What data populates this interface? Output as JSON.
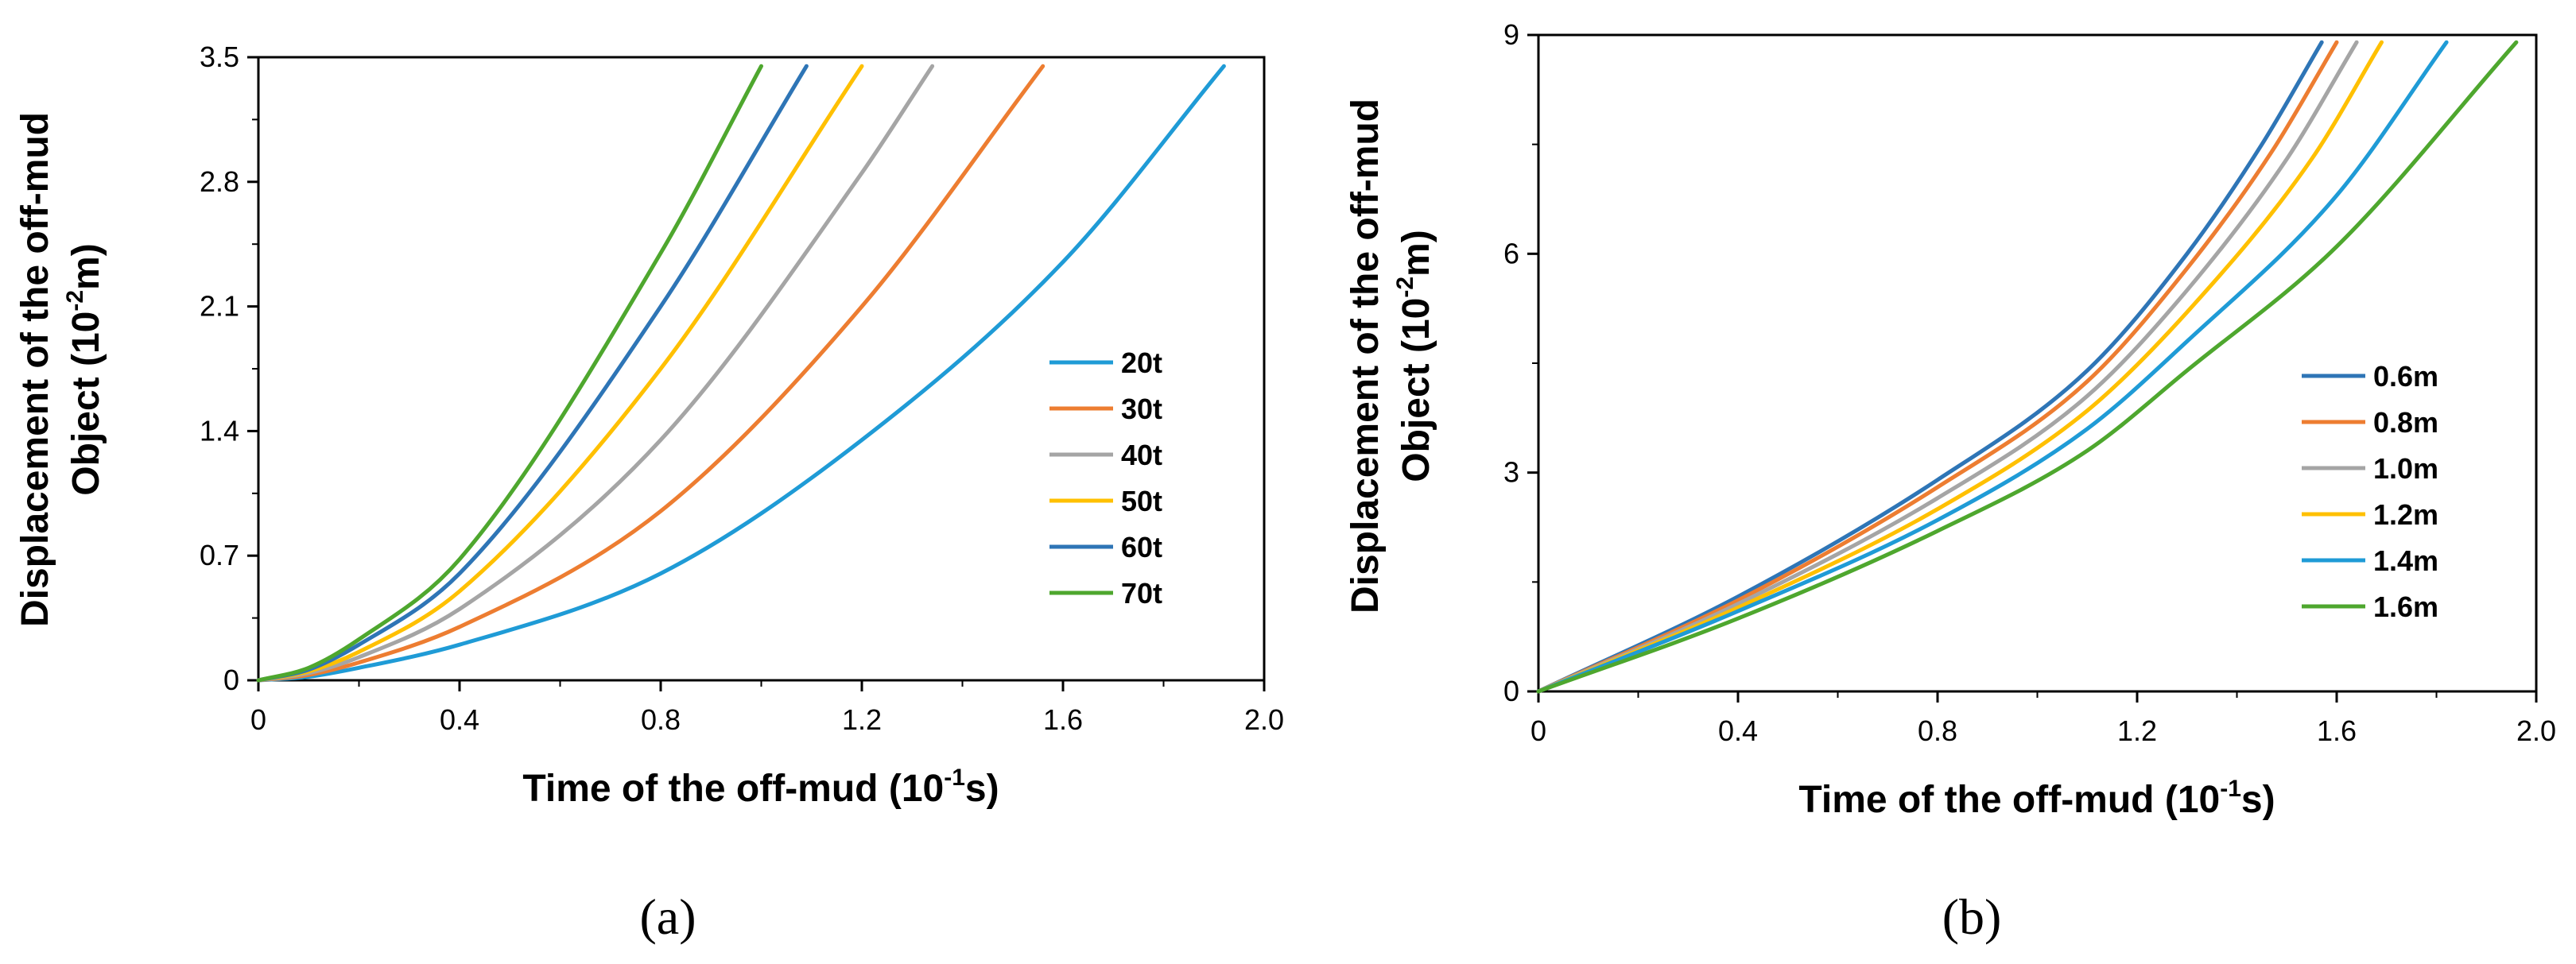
{
  "chart_data": [
    {
      "type": "line",
      "caption": "(a)",
      "xlabel": "Time of  the off-mud (10",
      "xlabel_exp": "-1",
      "xlabel_unit": "s)",
      "ylabel_line1": "Displacement of the off-mud",
      "ylabel_line2": "Object  (10",
      "ylabel_exp": "-2",
      "ylabel_unit": "m)",
      "xlim": [
        0,
        2.0
      ],
      "ylim": [
        0,
        3.5
      ],
      "xticks": [
        "0",
        "0.4",
        "0.8",
        "1.2",
        "1.6",
        "2.0"
      ],
      "yticks": [
        "0",
        "0.7",
        "1.4",
        "2.1",
        "2.8",
        "3.5"
      ],
      "legend_position": "right",
      "series": [
        {
          "name": "20t",
          "color": "#1F9BD6",
          "x": [
            0,
            0.1,
            0.2,
            0.4,
            0.8,
            1.2,
            1.6,
            1.92
          ],
          "y": [
            0,
            0.02,
            0.07,
            0.2,
            0.6,
            1.35,
            2.35,
            3.45
          ]
        },
        {
          "name": "30t",
          "color": "#ED7D31",
          "x": [
            0,
            0.1,
            0.2,
            0.4,
            0.8,
            1.2,
            1.56
          ],
          "y": [
            0,
            0.03,
            0.1,
            0.3,
            0.95,
            2.1,
            3.45
          ]
        },
        {
          "name": "40t",
          "color": "#A5A5A5",
          "x": [
            0,
            0.1,
            0.2,
            0.4,
            0.8,
            1.2,
            1.34
          ],
          "y": [
            0,
            0.04,
            0.13,
            0.4,
            1.35,
            2.85,
            3.45
          ]
        },
        {
          "name": "50t",
          "color": "#FFC000",
          "x": [
            0,
            0.1,
            0.2,
            0.4,
            0.8,
            1.2
          ],
          "y": [
            0,
            0.05,
            0.16,
            0.5,
            1.75,
            3.45
          ]
        },
        {
          "name": "60t",
          "color": "#2E75B6",
          "x": [
            0,
            0.1,
            0.2,
            0.4,
            0.8,
            1.09
          ],
          "y": [
            0,
            0.06,
            0.2,
            0.6,
            2.1,
            3.45
          ]
        },
        {
          "name": "70t",
          "color": "#4EA72E",
          "x": [
            0,
            0.1,
            0.2,
            0.4,
            0.8,
            1.0
          ],
          "y": [
            0,
            0.07,
            0.23,
            0.68,
            2.4,
            3.45
          ]
        }
      ]
    },
    {
      "type": "line",
      "caption": "(b)",
      "xlabel": "Time of  the off-mud (10",
      "xlabel_exp": "-1",
      "xlabel_unit": "s)",
      "ylabel_line1": "Displacement of the off-mud",
      "ylabel_line2": "Object  (10",
      "ylabel_exp": "-2",
      "ylabel_unit": "m)",
      "xlim": [
        0,
        2.0
      ],
      "ylim": [
        0,
        9
      ],
      "xticks": [
        "0",
        "0.4",
        "0.8",
        "1.2",
        "1.6",
        "2.0"
      ],
      "yticks": [
        "0",
        "3",
        "6",
        "9"
      ],
      "legend_position": "right",
      "series": [
        {
          "name": "0.6m",
          "color": "#2E75B6",
          "x": [
            0,
            0.4,
            0.8,
            1.1,
            1.3,
            1.45,
            1.57
          ],
          "y": [
            0,
            1.3,
            2.9,
            4.4,
            6.0,
            7.5,
            8.9
          ]
        },
        {
          "name": "0.8m",
          "color": "#ED7D31",
          "x": [
            0,
            0.4,
            0.8,
            1.1,
            1.3,
            1.47,
            1.6
          ],
          "y": [
            0,
            1.25,
            2.8,
            4.25,
            5.8,
            7.4,
            8.9
          ]
        },
        {
          "name": "1.0m",
          "color": "#A5A5A5",
          "x": [
            0,
            0.4,
            0.8,
            1.1,
            1.3,
            1.5,
            1.64
          ],
          "y": [
            0,
            1.2,
            2.65,
            4.05,
            5.5,
            7.3,
            8.9
          ]
        },
        {
          "name": "1.2m",
          "color": "#FFC000",
          "x": [
            0,
            0.4,
            0.8,
            1.1,
            1.3,
            1.55,
            1.69
          ],
          "y": [
            0,
            1.15,
            2.5,
            3.85,
            5.2,
            7.3,
            8.9
          ]
        },
        {
          "name": "1.4m",
          "color": "#1F9BD6",
          "x": [
            0,
            0.4,
            0.8,
            1.1,
            1.3,
            1.6,
            1.82
          ],
          "y": [
            0,
            1.1,
            2.35,
            3.6,
            4.8,
            6.8,
            8.9
          ]
        },
        {
          "name": "1.6m",
          "color": "#4EA72E",
          "x": [
            0,
            0.4,
            0.8,
            1.1,
            1.3,
            1.6,
            1.96
          ],
          "y": [
            0,
            1.0,
            2.2,
            3.3,
            4.4,
            6.1,
            8.9
          ]
        }
      ]
    }
  ]
}
